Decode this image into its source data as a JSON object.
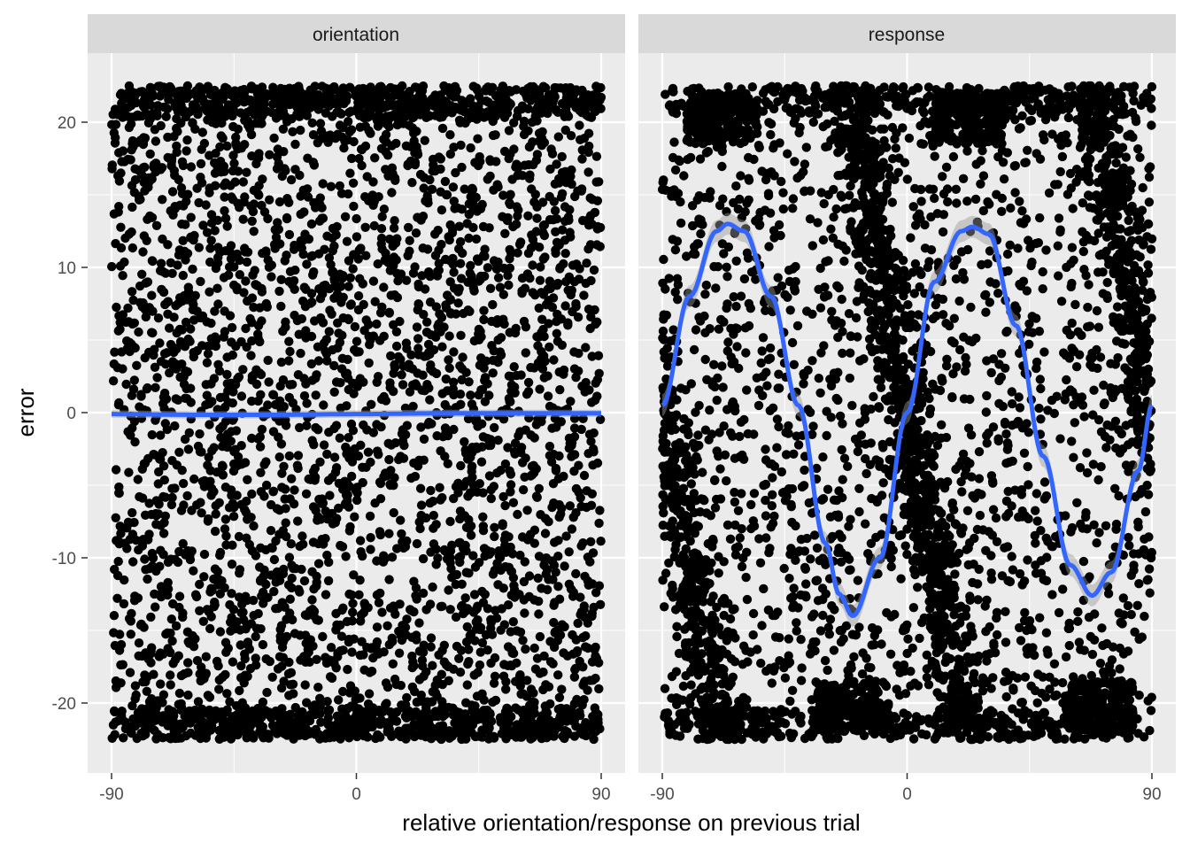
{
  "chart_data": {
    "type": "scatter",
    "xlabel": "relative orientation/response on previous trial",
    "ylabel": "error",
    "xlim": [
      -90,
      90
    ],
    "ylim": [
      -25,
      25
    ],
    "x_ticks": [
      "-90",
      "0",
      "90"
    ],
    "y_ticks": [
      "20",
      "10",
      "0",
      "-10",
      "-20"
    ],
    "grid": true,
    "legend": "none",
    "colors": {
      "points": "#000000",
      "smooth_line": "#3366FF",
      "ribbon": "#999999",
      "panel_background": "#EBEBEB",
      "strip_background": "#D9D9D9",
      "gridlines": "#FFFFFF"
    },
    "panels": [
      {
        "strip": "orientation",
        "points_note": "dense uniform cloud, x from -90 to 90, error from -22.5 to 22.5 (approx. 6000 points)",
        "smooth": {
          "x": [
            -90,
            -60,
            -30,
            0,
            30,
            60,
            90
          ],
          "y": [
            -0.1,
            -0.15,
            -0.15,
            -0.1,
            -0.05,
            -0.05,
            -0.05
          ]
        }
      },
      {
        "strip": "response",
        "points_note": "cloud with dense diagonal bands following the sinusoidal pattern, x from -90 to 90, error from -22.5 to 22.5",
        "smooth": {
          "x": [
            -90,
            -80,
            -70,
            -66,
            -60,
            -50,
            -40,
            -30,
            -25,
            -20,
            -10,
            0,
            10,
            20,
            24,
            30,
            40,
            50,
            60,
            68,
            75,
            85,
            90
          ],
          "y": [
            0.5,
            8.0,
            12.5,
            13.0,
            12.5,
            8.0,
            0.5,
            -9.0,
            -12.5,
            -14.0,
            -10.0,
            0.0,
            9.0,
            12.5,
            12.8,
            12.3,
            6.0,
            -3.0,
            -10.5,
            -12.6,
            -11.0,
            -4.0,
            0.5
          ]
        }
      }
    ]
  }
}
